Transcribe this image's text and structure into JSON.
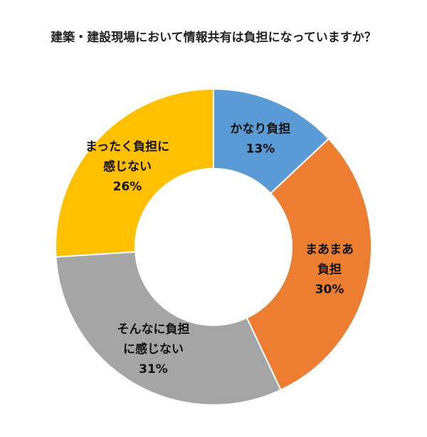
{
  "chart_data": {
    "type": "pie",
    "donut": true,
    "title": "建築・建設現場において情報共有は負担になっていますか？",
    "slices": [
      {
        "label_lines": [
          "かなり負担"
        ],
        "value": 13,
        "value_label": "13%",
        "color": "#5b9bd5"
      },
      {
        "label_lines": [
          "まあまあ",
          "負担"
        ],
        "value": 30,
        "value_label": "30%",
        "color": "#ed7d31"
      },
      {
        "label_lines": [
          "そんなに負担",
          "に感じない"
        ],
        "value": 31,
        "value_label": "31%",
        "color": "#a5a5a5"
      },
      {
        "label_lines": [
          "まったく負担に",
          "感じない"
        ],
        "value": 26,
        "value_label": "26%",
        "color": "#ffc000"
      }
    ],
    "start": "top",
    "direction": "clockwise"
  }
}
